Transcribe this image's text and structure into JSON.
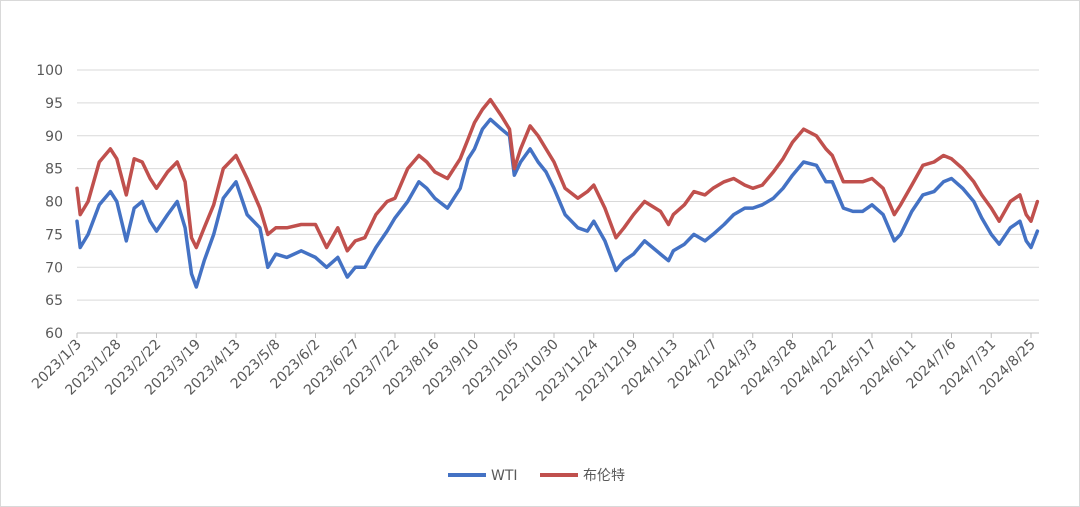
{
  "chart_data": {
    "type": "line",
    "title": "",
    "xlabel": "",
    "ylabel": "",
    "ylim": [
      60,
      100
    ],
    "yticks": [
      "60",
      "65",
      "70",
      "75",
      "80",
      "85",
      "90",
      "95",
      "100"
    ],
    "grid": "horizontal",
    "legend": "bottom-center",
    "x_tick_labels": [
      "2023/1/3",
      "2023/1/28",
      "2023/2/22",
      "2023/3/19",
      "2023/4/13",
      "2023/5/8",
      "2023/6/2",
      "2023/6/27",
      "2023/7/22",
      "2023/8/16",
      "2023/9/10",
      "2023/10/5",
      "2023/10/30",
      "2023/11/24",
      "2023/12/19",
      "2024/1/13",
      "2024/2/7",
      "2024/3/3",
      "2024/3/28",
      "2024/4/22",
      "2024/5/17",
      "2024/6/11",
      "2024/7/6",
      "2024/7/31",
      "2024/8/25"
    ],
    "series": [
      {
        "name": "WTI",
        "color": "#4472C4",
        "x": [
          "2023/1/3",
          "2023/1/5",
          "2023/1/10",
          "2023/1/17",
          "2023/1/24",
          "2023/1/28",
          "2023/2/3",
          "2023/2/8",
          "2023/2/13",
          "2023/2/18",
          "2023/2/22",
          "2023/3/1",
          "2023/3/7",
          "2023/3/12",
          "2023/3/16",
          "2023/3/19",
          "2023/3/24",
          "2023/3/30",
          "2023/4/5",
          "2023/4/13",
          "2023/4/20",
          "2023/4/28",
          "2023/5/3",
          "2023/5/8",
          "2023/5/15",
          "2023/5/24",
          "2023/6/2",
          "2023/6/9",
          "2023/6/16",
          "2023/6/22",
          "2023/6/27",
          "2023/7/3",
          "2023/7/10",
          "2023/7/17",
          "2023/7/22",
          "2023/7/30",
          "2023/8/6",
          "2023/8/11",
          "2023/8/16",
          "2023/8/24",
          "2023/9/1",
          "2023/9/6",
          "2023/9/10",
          "2023/9/15",
          "2023/9/20",
          "2023/9/27",
          "2023/10/2",
          "2023/10/5",
          "2023/10/9",
          "2023/10/15",
          "2023/10/20",
          "2023/10/25",
          "2023/10/30",
          "2023/11/6",
          "2023/11/14",
          "2023/11/20",
          "2023/11/24",
          "2023/12/1",
          "2023/12/8",
          "2023/12/13",
          "2023/12/19",
          "2023/12/26",
          "2024/1/5",
          "2024/1/10",
          "2024/1/13",
          "2024/1/20",
          "2024/1/26",
          "2024/2/2",
          "2024/2/7",
          "2024/2/14",
          "2024/2/20",
          "2024/2/27",
          "2024/3/3",
          "2024/3/9",
          "2024/3/16",
          "2024/3/22",
          "2024/3/28",
          "2024/4/4",
          "2024/4/12",
          "2024/4/18",
          "2024/4/22",
          "2024/4/29",
          "2024/5/5",
          "2024/5/11",
          "2024/5/17",
          "2024/5/24",
          "2024/5/31",
          "2024/6/4",
          "2024/6/11",
          "2024/6/18",
          "2024/6/25",
          "2024/7/1",
          "2024/7/6",
          "2024/7/13",
          "2024/7/20",
          "2024/7/25",
          "2024/7/31",
          "2024/8/5",
          "2024/8/12",
          "2024/8/18",
          "2024/8/22",
          "2024/8/25",
          "2024/8/29"
        ],
        "values": [
          77.0,
          73.0,
          75.0,
          79.5,
          81.5,
          80.0,
          74.0,
          79.0,
          80.0,
          77.0,
          75.5,
          78.0,
          80.0,
          76.0,
          69.0,
          67.0,
          71.0,
          75.0,
          80.5,
          83.0,
          78.0,
          76.0,
          70.0,
          72.0,
          71.5,
          72.5,
          71.5,
          70.0,
          71.5,
          68.5,
          70.0,
          70.0,
          73.0,
          75.5,
          77.5,
          80.0,
          83.0,
          82.0,
          80.5,
          79.0,
          82.0,
          86.5,
          88.0,
          91.0,
          92.5,
          91.0,
          90.0,
          84.0,
          86.0,
          88.0,
          86.0,
          84.5,
          82.0,
          78.0,
          76.0,
          75.5,
          77.0,
          74.0,
          69.5,
          71.0,
          72.0,
          74.0,
          72.0,
          71.0,
          72.5,
          73.5,
          75.0,
          74.0,
          75.0,
          76.5,
          78.0,
          79.0,
          79.0,
          79.5,
          80.5,
          82.0,
          84.0,
          86.0,
          85.5,
          83.0,
          83.0,
          79.0,
          78.5,
          78.5,
          79.5,
          78.0,
          74.0,
          75.0,
          78.5,
          81.0,
          81.5,
          83.0,
          83.5,
          82.0,
          80.0,
          77.5,
          75.0,
          73.5,
          76.0,
          77.0,
          74.0,
          73.0,
          75.5
        ]
      },
      {
        "name": "布伦特",
        "color": "#C0504D",
        "x": [
          "2023/1/3",
          "2023/1/5",
          "2023/1/10",
          "2023/1/17",
          "2023/1/24",
          "2023/1/28",
          "2023/2/3",
          "2023/2/8",
          "2023/2/13",
          "2023/2/18",
          "2023/2/22",
          "2023/3/1",
          "2023/3/7",
          "2023/3/12",
          "2023/3/16",
          "2023/3/19",
          "2023/3/24",
          "2023/3/30",
          "2023/4/5",
          "2023/4/13",
          "2023/4/20",
          "2023/4/28",
          "2023/5/3",
          "2023/5/8",
          "2023/5/15",
          "2023/5/24",
          "2023/6/2",
          "2023/6/9",
          "2023/6/16",
          "2023/6/22",
          "2023/6/27",
          "2023/7/3",
          "2023/7/10",
          "2023/7/17",
          "2023/7/22",
          "2023/7/30",
          "2023/8/6",
          "2023/8/11",
          "2023/8/16",
          "2023/8/24",
          "2023/9/1",
          "2023/9/6",
          "2023/9/10",
          "2023/9/15",
          "2023/9/20",
          "2023/9/27",
          "2023/10/2",
          "2023/10/5",
          "2023/10/9",
          "2023/10/15",
          "2023/10/20",
          "2023/10/25",
          "2023/10/30",
          "2023/11/6",
          "2023/11/14",
          "2023/11/20",
          "2023/11/24",
          "2023/12/1",
          "2023/12/8",
          "2023/12/13",
          "2023/12/19",
          "2023/12/26",
          "2024/1/5",
          "2024/1/10",
          "2024/1/13",
          "2024/1/20",
          "2024/1/26",
          "2024/2/2",
          "2024/2/7",
          "2024/2/14",
          "2024/2/20",
          "2024/2/27",
          "2024/3/3",
          "2024/3/9",
          "2024/3/16",
          "2024/3/22",
          "2024/3/28",
          "2024/4/4",
          "2024/4/12",
          "2024/4/18",
          "2024/4/22",
          "2024/4/29",
          "2024/5/5",
          "2024/5/11",
          "2024/5/17",
          "2024/5/24",
          "2024/5/31",
          "2024/6/4",
          "2024/6/11",
          "2024/6/18",
          "2024/6/25",
          "2024/7/1",
          "2024/7/6",
          "2024/7/13",
          "2024/7/20",
          "2024/7/25",
          "2024/7/31",
          "2024/8/5",
          "2024/8/12",
          "2024/8/18",
          "2024/8/22",
          "2024/8/25",
          "2024/8/29"
        ],
        "values": [
          82.0,
          78.0,
          80.0,
          86.0,
          88.0,
          86.5,
          81.0,
          86.5,
          86.0,
          83.5,
          82.0,
          84.5,
          86.0,
          83.0,
          74.5,
          73.0,
          76.0,
          79.5,
          85.0,
          87.0,
          83.5,
          79.0,
          75.0,
          76.0,
          76.0,
          76.5,
          76.5,
          73.0,
          76.0,
          72.5,
          74.0,
          74.5,
          78.0,
          80.0,
          80.5,
          85.0,
          87.0,
          86.0,
          84.5,
          83.5,
          86.5,
          89.5,
          92.0,
          94.0,
          95.5,
          93.0,
          91.0,
          85.0,
          88.0,
          91.5,
          90.0,
          88.0,
          86.0,
          82.0,
          80.5,
          81.5,
          82.5,
          79.0,
          74.5,
          76.0,
          78.0,
          80.0,
          78.5,
          76.5,
          78.0,
          79.5,
          81.5,
          81.0,
          82.0,
          83.0,
          83.5,
          82.5,
          82.0,
          82.5,
          84.5,
          86.5,
          89.0,
          91.0,
          90.0,
          88.0,
          87.0,
          83.0,
          83.0,
          83.0,
          83.5,
          82.0,
          78.0,
          79.5,
          82.5,
          85.5,
          86.0,
          87.0,
          86.5,
          85.0,
          83.0,
          81.0,
          79.0,
          77.0,
          80.0,
          81.0,
          78.0,
          77.0,
          80.0
        ]
      }
    ]
  }
}
